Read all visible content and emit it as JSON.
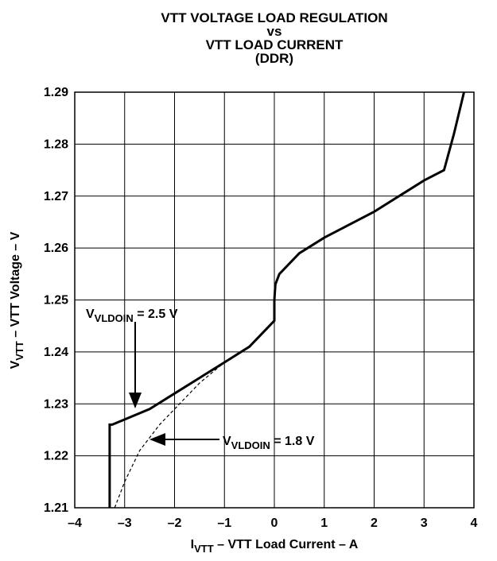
{
  "chart_data": {
    "type": "line",
    "title": [
      "VTT VOLTAGE LOAD REGULATION",
      "vs",
      "VTT LOAD CURRENT",
      "(DDR)"
    ],
    "xlabel": {
      "main": "I",
      "sub": "VTT",
      "rest": " – VTT Load Current – A"
    },
    "ylabel": {
      "main": "V",
      "sub": "VTT",
      "rest": " – VTT Voltage – V"
    },
    "xlim": [
      -4,
      4
    ],
    "xticks": [
      {
        "value": -4,
        "label": "–4"
      },
      {
        "value": -3,
        "label": "–3"
      },
      {
        "value": -2,
        "label": "–2"
      },
      {
        "value": -1,
        "label": "–1"
      },
      0,
      1,
      2,
      3,
      4
    ],
    "ylim": [
      1.21,
      1.29
    ],
    "yticks": [
      1.21,
      1.22,
      1.23,
      1.24,
      1.25,
      1.26,
      1.27,
      1.28,
      1.29
    ],
    "grid": true,
    "series": [
      {
        "color": "#000000",
        "style": "solid",
        "x": [
          -3.3,
          -3.3,
          -3.25,
          -3.0,
          -2.5,
          -2.0,
          -1.5,
          -1.0,
          -0.5,
          -0.1,
          0.0,
          0.0,
          0.02,
          0.1,
          0.5,
          1.0,
          2.0,
          3.0,
          3.4,
          3.6,
          3.8
        ],
        "values": [
          1.21,
          1.226,
          1.226,
          1.227,
          1.229,
          1.232,
          1.235,
          1.238,
          1.241,
          1.245,
          1.246,
          1.25,
          1.253,
          1.255,
          1.259,
          1.262,
          1.267,
          1.273,
          1.275,
          1.282,
          1.29
        ]
      },
      {
        "color": "#000000",
        "style": "dashed",
        "x": [
          -3.2,
          -3.0,
          -2.7,
          -2.3,
          -2.0,
          -1.5,
          -1.0,
          -0.5,
          -0.1,
          0.0,
          0.0,
          0.02,
          0.1,
          0.5,
          1.0,
          2.0,
          3.0,
          3.4,
          3.6,
          3.8
        ],
        "values": [
          1.21,
          1.215,
          1.221,
          1.226,
          1.229,
          1.234,
          1.238,
          1.241,
          1.245,
          1.246,
          1.25,
          1.253,
          1.255,
          1.259,
          1.262,
          1.267,
          1.273,
          1.275,
          1.282,
          1.29
        ]
      }
    ],
    "annotations": [
      {
        "main": "V",
        "sub": "VLDOIN",
        "rest": " = 2.5 V"
      },
      {
        "main": "V",
        "sub": "VLDOIN",
        "rest": " = 1.8 V"
      }
    ]
  }
}
